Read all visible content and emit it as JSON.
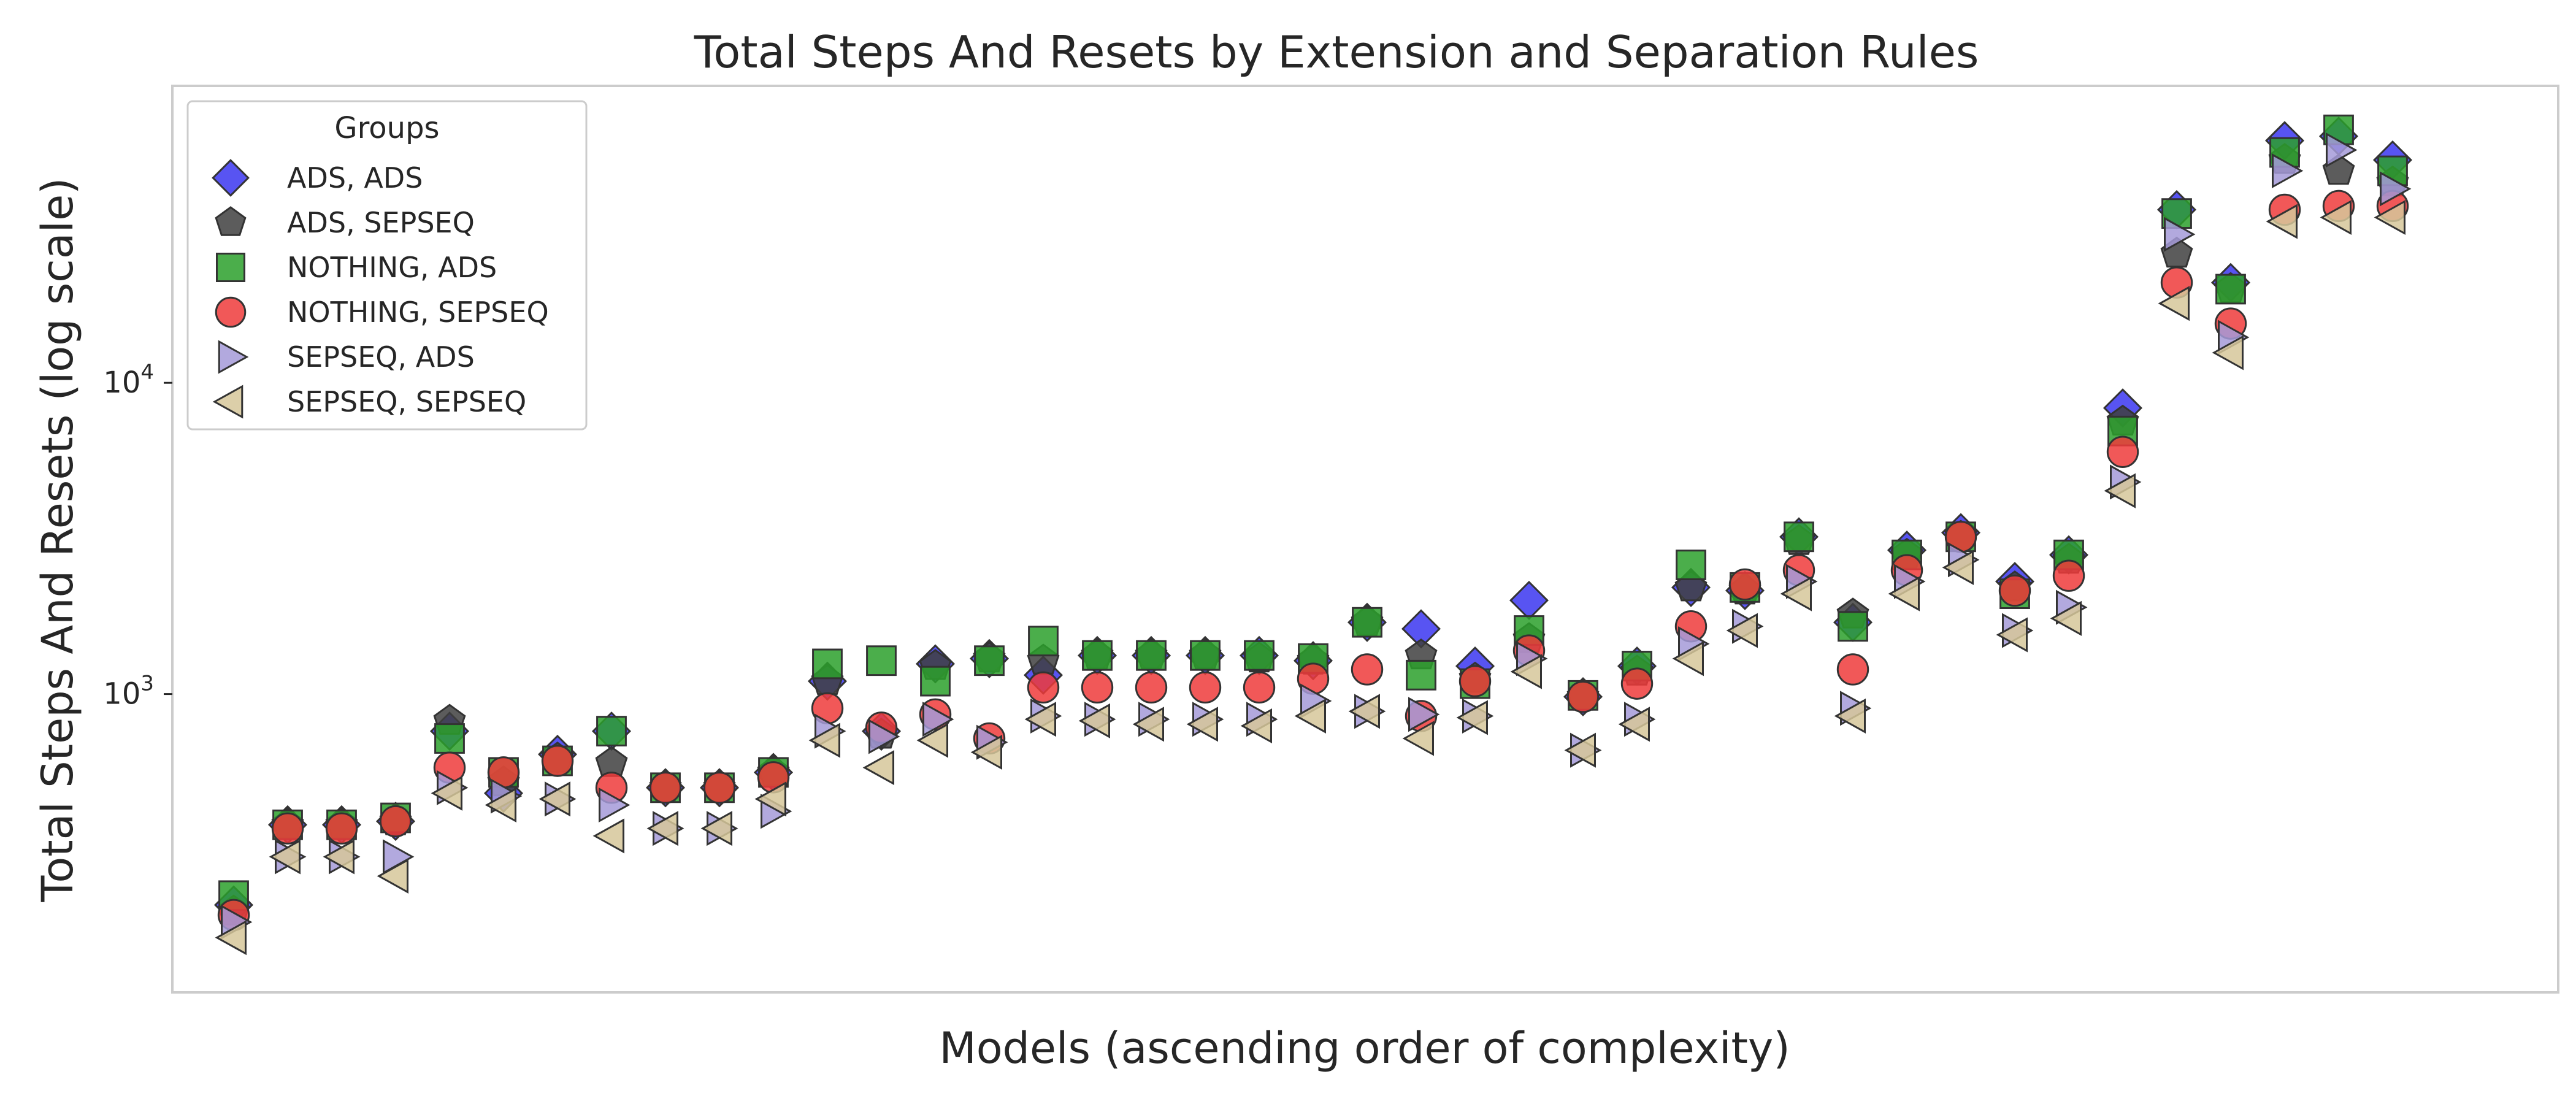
{
  "chart_data": {
    "type": "scatter",
    "title": "Total Steps And Resets by Extension and Separation Rules",
    "xlabel": "Models (ascending order of complexity)",
    "ylabel": "Total Steps And Resets (log scale)",
    "yscale": "log",
    "ylim": [
      110,
      90000
    ],
    "y_ticks": [
      {
        "base": "10",
        "exp": "3"
      },
      {
        "base": "10",
        "exp": "4"
      }
    ],
    "y_tick_values": [
      1000,
      10000
    ],
    "x_count": 42,
    "grid": false,
    "legend": {
      "title": "Groups",
      "placement": "upper-left"
    },
    "series": [
      {
        "name": "ADS, ADS",
        "marker": "diamond",
        "color": "#3b36f0",
        "values": [
          210,
          380,
          380,
          390,
          760,
          480,
          640,
          760,
          500,
          500,
          560,
          1100,
          760,
          1250,
          1300,
          1150,
          1330,
          1330,
          1330,
          1330,
          1280,
          1700,
          1620,
          1230,
          2000,
          980,
          1230,
          2200,
          2150,
          3200,
          1700,
          2900,
          3300,
          2300,
          2800,
          8300,
          36000,
          21000,
          60000,
          62000,
          52000,
          null
        ]
      },
      {
        "name": "ADS, SEPSEQ",
        "marker": "pentagon",
        "color": "#404040",
        "values": [
          200,
          380,
          380,
          390,
          820,
          520,
          620,
          600,
          500,
          500,
          560,
          1100,
          740,
          1230,
          1300,
          1280,
          1330,
          1330,
          1330,
          1300,
          1280,
          1700,
          1330,
          1120,
          1500,
          980,
          1180,
          2200,
          2150,
          3100,
          1800,
          2800,
          3200,
          2200,
          2700,
          7500,
          26000,
          20000,
          52000,
          48000,
          44000,
          null
        ]
      },
      {
        "name": "NOTHING, ADS",
        "marker": "square",
        "color": "#2ca02c",
        "values": [
          225,
          380,
          380,
          400,
          720,
          560,
          610,
          760,
          500,
          500,
          560,
          1250,
          1280,
          1100,
          1280,
          1480,
          1330,
          1330,
          1330,
          1330,
          1300,
          1700,
          1150,
          1080,
          1600,
          990,
          1230,
          2600,
          2200,
          3200,
          1650,
          2800,
          3200,
          2100,
          2800,
          7000,
          35000,
          20000,
          55000,
          65000,
          48000,
          null
        ]
      },
      {
        "name": "NOTHING, SEPSEQ",
        "marker": "circle",
        "color": "#ee3b3b",
        "values": [
          195,
          370,
          370,
          390,
          580,
          560,
          610,
          500,
          500,
          500,
          540,
          900,
          780,
          860,
          720,
          1050,
          1050,
          1050,
          1050,
          1050,
          1120,
          1200,
          850,
          1100,
          1380,
          980,
          1080,
          1650,
          2250,
          2500,
          1200,
          2500,
          3200,
          2150,
          2400,
          6000,
          21000,
          15500,
          36000,
          37000,
          37000,
          null
        ]
      },
      {
        "name": "SEPSEQ, ADS",
        "marker": "triangle-right",
        "color": "#a49ad8",
        "values": [
          185,
          300,
          300,
          300,
          500,
          470,
          460,
          440,
          370,
          370,
          420,
          760,
          730,
          830,
          700,
          850,
          830,
          830,
          830,
          830,
          950,
          880,
          860,
          850,
          1300,
          660,
          830,
          1450,
          1650,
          2300,
          900,
          2300,
          2700,
          1600,
          1900,
          4800,
          30000,
          14000,
          48000,
          56000,
          42000,
          null
        ]
      },
      {
        "name": "SEPSEQ, SEPSEQ",
        "marker": "triangle-left",
        "color": "#d6c79a",
        "values": [
          165,
          300,
          300,
          260,
          480,
          440,
          460,
          350,
          370,
          370,
          460,
          710,
          580,
          710,
          650,
          830,
          820,
          800,
          800,
          790,
          850,
          880,
          720,
          840,
          1180,
          660,
          800,
          1300,
          1600,
          2100,
          850,
          2100,
          2550,
          1550,
          1750,
          4500,
          18000,
          12500,
          33000,
          34000,
          34000,
          null
        ]
      }
    ]
  }
}
